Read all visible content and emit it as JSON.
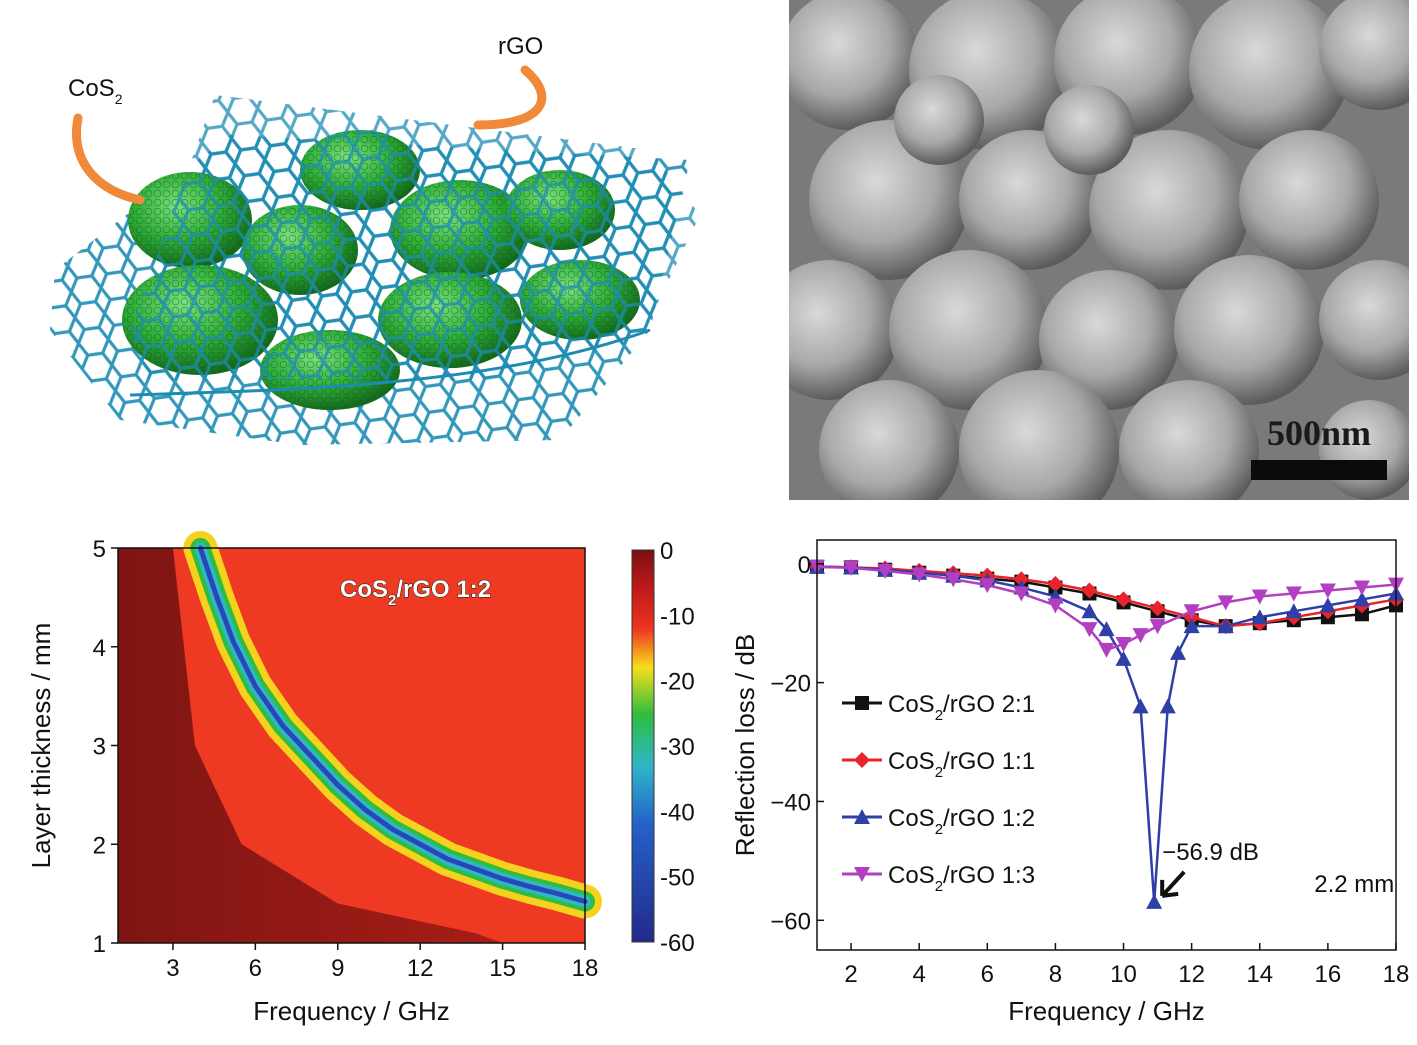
{
  "schematic": {
    "label_cos2": "CoS",
    "label_cos2_sub": "2",
    "label_rgo": "rGO",
    "sheet_color": "#1f8fb4",
    "particle_color": "#2fae3a",
    "arrow_color": "#f08a3a"
  },
  "sem": {
    "scale_label": "500nm"
  },
  "chart_data": [
    {
      "type": "heatmap",
      "title": "CoS2/rGO 1:2",
      "title_main": "CoS",
      "title_sub": "2",
      "title_rest": "/rGO 1:2",
      "xlabel": "Frequency / GHz",
      "ylabel": "Layer thickness / mm",
      "xlim": [
        1,
        18
      ],
      "ylim": [
        1,
        5
      ],
      "xticks": [
        "3",
        "6",
        "9",
        "12",
        "15",
        "18"
      ],
      "yticks": [
        "1",
        "2",
        "3",
        "4",
        "5"
      ],
      "colorbar": {
        "ticks": [
          "0",
          "-10",
          "-20",
          "-30",
          "-40",
          "-50",
          "-60"
        ],
        "range": [
          0,
          -60
        ]
      },
      "min_curve": {
        "x": [
          4.0,
          4.6,
          5.2,
          6.0,
          7.0,
          8.0,
          9.0,
          10.0,
          11.0,
          12.0,
          13.0,
          14.0,
          15.0,
          16.0,
          17.0,
          18.0
        ],
        "y": [
          5.0,
          4.5,
          4.05,
          3.6,
          3.2,
          2.9,
          2.6,
          2.35,
          2.15,
          2.0,
          1.85,
          1.75,
          1.65,
          1.57,
          1.5,
          1.42
        ]
      }
    },
    {
      "type": "line",
      "xlabel": "Frequency / GHz",
      "ylabel": "Reflection loss / dB",
      "xlim": [
        1,
        18
      ],
      "ylim": [
        -65,
        4
      ],
      "xticks": [
        "2",
        "4",
        "6",
        "8",
        "10",
        "12",
        "14",
        "16",
        "18"
      ],
      "yticks": [
        "0",
        "−20",
        "−40",
        "−60"
      ],
      "legend_position": "center-left",
      "series": [
        {
          "name": "CoS2/rGO 2:1",
          "name_main": "CoS",
          "name_sub": "2",
          "name_rest": "/rGO 2:1",
          "color": "#111111",
          "marker": "square",
          "x": [
            1,
            2,
            3,
            4,
            5,
            6,
            7,
            8,
            9,
            10,
            11,
            12,
            13,
            14,
            15,
            16,
            17,
            18
          ],
          "y": [
            -0.5,
            -0.6,
            -1.0,
            -1.5,
            -2.0,
            -2.5,
            -3.0,
            -4.0,
            -5.0,
            -6.5,
            -8.0,
            -9.5,
            -10.5,
            -10.0,
            -9.5,
            -9.0,
            -8.5,
            -7.0
          ]
        },
        {
          "name": "CoS2/rGO 1:1",
          "name_main": "CoS",
          "name_sub": "2",
          "name_rest": "/rGO 1:1",
          "color": "#e8232a",
          "marker": "diamond",
          "x": [
            1,
            2,
            3,
            4,
            5,
            6,
            7,
            8,
            9,
            10,
            11,
            12,
            13,
            14,
            15,
            16,
            17,
            18
          ],
          "y": [
            -0.5,
            -0.6,
            -0.8,
            -1.2,
            -1.6,
            -2.0,
            -2.6,
            -3.4,
            -4.5,
            -6.0,
            -7.5,
            -9.0,
            -10.5,
            -10.0,
            -9.0,
            -8.0,
            -7.0,
            -6.0
          ]
        },
        {
          "name": "CoS2/rGO 1:2",
          "name_main": "CoS",
          "name_sub": "2",
          "name_rest": "/rGO 1:2",
          "color": "#2f3fa8",
          "marker": "triangle-up",
          "x": [
            1,
            2,
            3,
            4,
            5,
            6,
            7,
            8,
            9,
            9.5,
            10,
            10.5,
            10.9,
            11.3,
            11.6,
            12,
            13,
            14,
            15,
            16,
            17,
            18
          ],
          "y": [
            -0.5,
            -0.6,
            -1.0,
            -1.5,
            -2.0,
            -2.8,
            -4.0,
            -5.5,
            -8.0,
            -11.0,
            -16.0,
            -24.0,
            -56.9,
            -24.0,
            -15.0,
            -10.5,
            -10.5,
            -9.0,
            -8.0,
            -7.0,
            -6.0,
            -5.0
          ]
        },
        {
          "name": "CoS2/rGO 1:3",
          "name_main": "CoS",
          "name_sub": "2",
          "name_rest": "/rGO 1:3",
          "color": "#b23fc2",
          "marker": "triangle-down",
          "x": [
            1,
            2,
            3,
            4,
            5,
            6,
            7,
            8,
            9,
            9.5,
            10,
            10.5,
            11,
            12,
            13,
            14,
            15,
            16,
            17,
            18
          ],
          "y": [
            -0.5,
            -0.7,
            -1.2,
            -1.8,
            -2.6,
            -3.6,
            -5.0,
            -7.0,
            -11.0,
            -14.5,
            -13.5,
            -12.0,
            -10.5,
            -8.0,
            -6.5,
            -5.5,
            -5.0,
            -4.5,
            -4.0,
            -3.5
          ]
        }
      ],
      "annotations": [
        {
          "text": "−56.9 dB",
          "x": 10.9,
          "y": -56.9
        },
        {
          "text": "2.2 mm"
        }
      ]
    }
  ]
}
